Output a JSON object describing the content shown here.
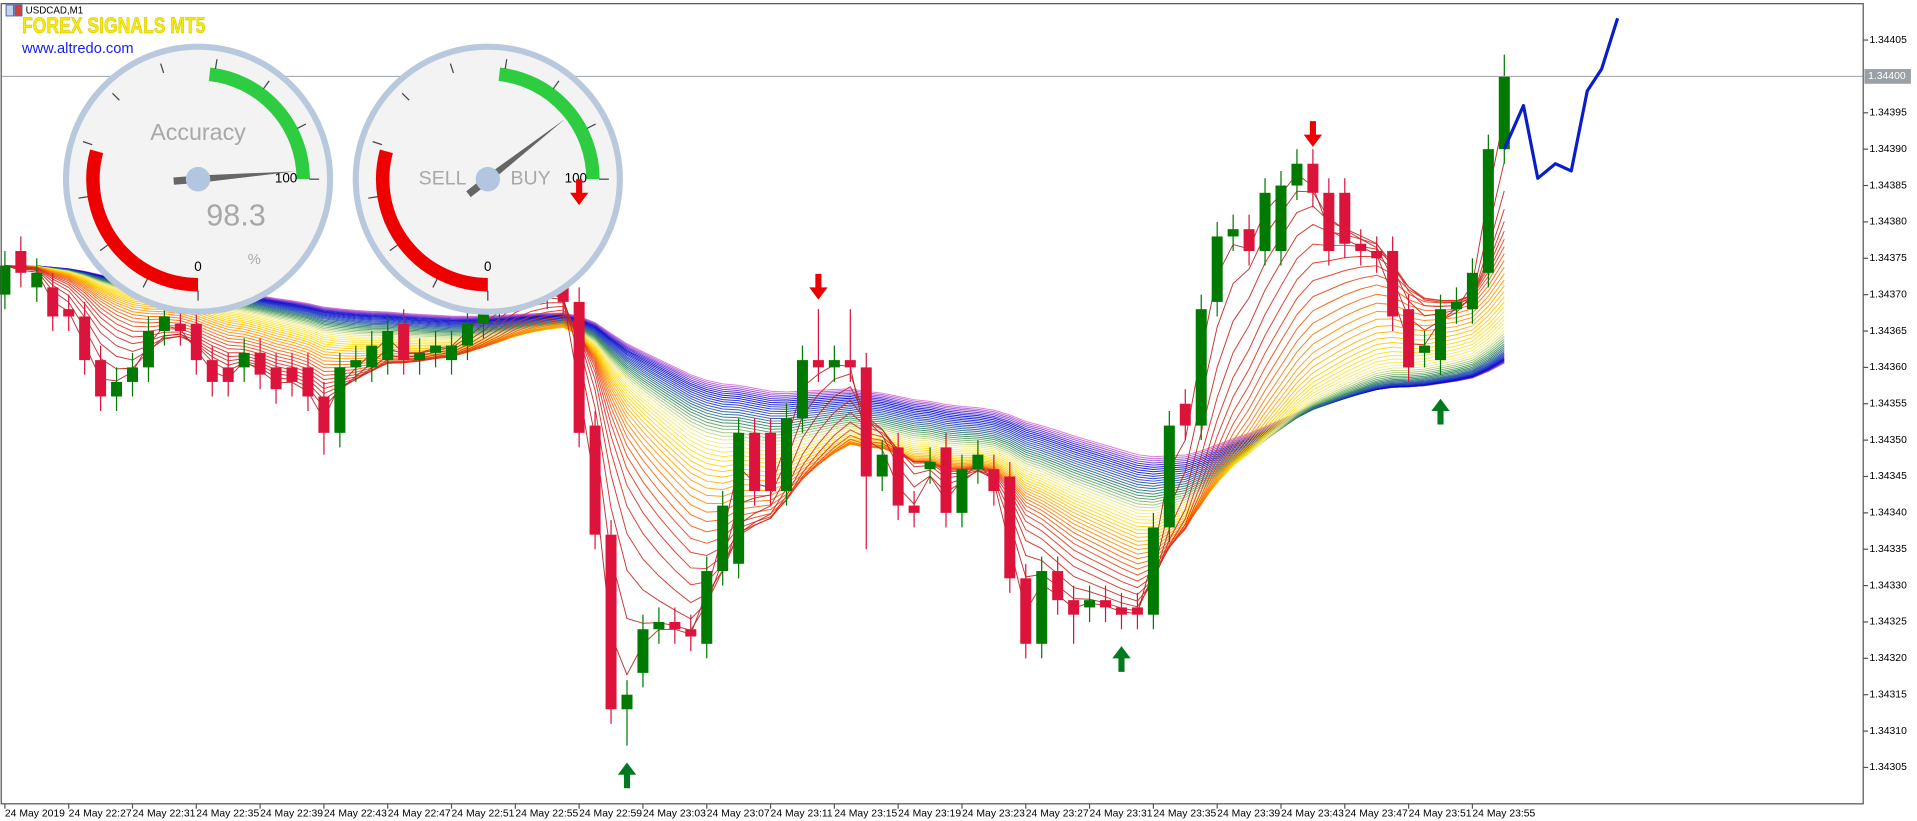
{
  "header": {
    "symbol": "USDCAD,M1",
    "brand": "FOREX SIGNALS MT5",
    "url": "www.altredo.com"
  },
  "chart_data": {
    "type": "candlestick",
    "xlim": [
      -0.23,
      116.5
    ],
    "ylim": [
      1.343,
      1.3441
    ],
    "xticks": [
      {
        "value": 0,
        "label": "24 May 2019"
      },
      {
        "value": 4,
        "label": "24 May 22:27"
      },
      {
        "value": 8,
        "label": "24 May 22:31"
      },
      {
        "value": 12,
        "label": "24 May 22:35"
      },
      {
        "value": 16,
        "label": "24 May 22:39"
      },
      {
        "value": 20,
        "label": "24 May 22:43"
      },
      {
        "value": 24,
        "label": "24 May 22:47"
      },
      {
        "value": 28,
        "label": "24 May 22:51"
      },
      {
        "value": 32,
        "label": "24 May 22:55"
      },
      {
        "value": 36,
        "label": "24 May 22:59"
      },
      {
        "value": 40,
        "label": "24 May 23:03"
      },
      {
        "value": 44,
        "label": "24 May 23:07"
      },
      {
        "value": 48,
        "label": "24 May 23:11"
      },
      {
        "value": 52,
        "label": "24 May 23:15"
      },
      {
        "value": 56,
        "label": "24 May 23:19"
      },
      {
        "value": 60,
        "label": "24 May 23:23"
      },
      {
        "value": 64,
        "label": "24 May 23:27"
      },
      {
        "value": 68,
        "label": "24 May 23:31"
      },
      {
        "value": 72,
        "label": "24 May 23:35"
      },
      {
        "value": 76,
        "label": "24 May 23:39"
      },
      {
        "value": 80,
        "label": "24 May 23:43"
      },
      {
        "value": 84,
        "label": "24 May 23:47"
      },
      {
        "value": 88,
        "label": "24 May 23:51"
      },
      {
        "value": 92,
        "label": "24 May 23:55"
      }
    ],
    "yticks": [
      1.34305,
      {
        "value": 1.3431,
        "label": "1.34310"
      },
      1.34315,
      {
        "value": 1.3432,
        "label": "1.34320"
      },
      1.34325,
      {
        "value": 1.3433,
        "label": "1.34330"
      },
      1.34335,
      {
        "value": 1.3434,
        "label": "1.34340"
      },
      1.34345,
      {
        "value": 1.3435,
        "label": "1.34350"
      },
      1.34355,
      {
        "value": 1.3436,
        "label": "1.34360"
      },
      1.34365,
      {
        "value": 1.3437,
        "label": "1.34370"
      },
      1.34375,
      {
        "value": 1.3438,
        "label": "1.34380"
      },
      1.34385,
      {
        "value": 1.3439,
        "label": "1.34390"
      },
      1.34395,
      1.34405
    ],
    "current_price": {
      "value": 1.344,
      "label": "1.34400"
    },
    "up_color": "#007a00",
    "down_color": "#dc143c",
    "open": [
      1.3437,
      1.34376,
      1.34371,
      1.34371,
      1.34368,
      1.34367,
      1.34361,
      1.34356,
      1.34358,
      1.3436,
      1.34365,
      1.34366,
      1.34366,
      1.34361,
      1.3436,
      1.3436,
      1.34362,
      1.3436,
      1.3436,
      1.3436,
      1.34356,
      1.34351,
      1.3436,
      1.3436,
      1.34361,
      1.34366,
      1.34361,
      1.34362,
      1.34361,
      1.34363,
      1.34366,
      1.34368,
      1.3437,
      1.34372,
      1.34371,
      1.34371,
      1.34369,
      1.34352,
      1.34337,
      1.34313,
      1.34318,
      1.34324,
      1.34325,
      1.34324,
      1.34322,
      1.34332,
      1.34333,
      1.34351,
      1.34351,
      1.34343,
      1.34353,
      1.34361,
      1.3436,
      1.34361,
      1.3436,
      1.34345,
      1.34349,
      1.34341,
      1.34346,
      1.34349,
      1.3434,
      1.34346,
      1.34346,
      1.34345,
      1.34331,
      1.34322,
      1.34332,
      1.34328,
      1.34327,
      1.34328,
      1.34327,
      1.34327,
      1.34326,
      1.34338,
      1.34355,
      1.34352,
      1.34369,
      1.34378,
      1.34379,
      1.34376,
      1.34376,
      1.34385,
      1.34388,
      1.34384,
      1.34384,
      1.34377,
      1.34376,
      1.34376,
      1.34368,
      1.34362,
      1.34361,
      1.34368,
      1.34368,
      1.34373,
      1.3439
    ],
    "high": [
      1.34376,
      1.34378,
      1.34375,
      1.34373,
      1.3437,
      1.34369,
      1.34363,
      1.3436,
      1.34362,
      1.34367,
      1.34369,
      1.34368,
      1.34368,
      1.34363,
      1.34362,
      1.34364,
      1.34364,
      1.34362,
      1.34362,
      1.34362,
      1.34358,
      1.34362,
      1.34363,
      1.34365,
      1.34367,
      1.34368,
      1.34364,
      1.34365,
      1.34365,
      1.34368,
      1.3437,
      1.34372,
      1.34374,
      1.34374,
      1.34373,
      1.34373,
      1.34371,
      1.34354,
      1.34339,
      1.34317,
      1.34326,
      1.34327,
      1.34327,
      1.34326,
      1.34334,
      1.34343,
      1.34353,
      1.34353,
      1.34353,
      1.34355,
      1.34363,
      1.34368,
      1.34363,
      1.34368,
      1.34362,
      1.3435,
      1.34351,
      1.34343,
      1.34349,
      1.34351,
      1.34348,
      1.3435,
      1.34348,
      1.34347,
      1.34333,
      1.34334,
      1.34334,
      1.3433,
      1.3433,
      1.3433,
      1.34329,
      1.34329,
      1.3434,
      1.34354,
      1.34357,
      1.3437,
      1.3438,
      1.34381,
      1.34381,
      1.34386,
      1.34387,
      1.3439,
      1.3439,
      1.34386,
      1.34386,
      1.34379,
      1.34378,
      1.34378,
      1.3437,
      1.34365,
      1.3437,
      1.34371,
      1.34375,
      1.34392,
      1.34403
    ],
    "low": [
      1.34368,
      1.34371,
      1.34369,
      1.34365,
      1.34365,
      1.34359,
      1.34354,
      1.34354,
      1.34356,
      1.34358,
      1.34363,
      1.34363,
      1.34359,
      1.34356,
      1.34356,
      1.34358,
      1.34357,
      1.34355,
      1.34356,
      1.34354,
      1.34348,
      1.34349,
      1.34358,
      1.34358,
      1.34359,
      1.34359,
      1.34359,
      1.3436,
      1.34359,
      1.34361,
      1.34364,
      1.34366,
      1.34368,
      1.34369,
      1.34368,
      1.34367,
      1.34349,
      1.34335,
      1.34311,
      1.34308,
      1.34316,
      1.34322,
      1.34322,
      1.34321,
      1.3432,
      1.3433,
      1.34331,
      1.34341,
      1.34341,
      1.34341,
      1.34351,
      1.34358,
      1.34358,
      1.34358,
      1.34335,
      1.34343,
      1.34339,
      1.34338,
      1.34344,
      1.34338,
      1.34338,
      1.34344,
      1.34341,
      1.34329,
      1.3432,
      1.3432,
      1.34326,
      1.34322,
      1.34325,
      1.34325,
      1.34324,
      1.34324,
      1.34324,
      1.34336,
      1.3435,
      1.3435,
      1.34367,
      1.34376,
      1.34374,
      1.34374,
      1.34374,
      1.34383,
      1.34382,
      1.34374,
      1.34375,
      1.34374,
      1.34373,
      1.34365,
      1.34358,
      1.3436,
      1.34359,
      1.34366,
      1.34366,
      1.34371,
      1.34388
    ],
    "close": [
      1.34374,
      1.34373,
      1.34373,
      1.34367,
      1.34367,
      1.34361,
      1.34356,
      1.34358,
      1.3436,
      1.34365,
      1.34367,
      1.34365,
      1.34361,
      1.34358,
      1.34358,
      1.34362,
      1.34359,
      1.34357,
      1.34358,
      1.34356,
      1.34351,
      1.3436,
      1.34361,
      1.34363,
      1.34365,
      1.34361,
      1.34362,
      1.34363,
      1.34363,
      1.34366,
      1.34368,
      1.3437,
      1.34372,
      1.34371,
      1.3437,
      1.34369,
      1.34351,
      1.34337,
      1.34313,
      1.34315,
      1.34324,
      1.34325,
      1.34324,
      1.34323,
      1.34332,
      1.34341,
      1.34351,
      1.34343,
      1.34343,
      1.34353,
      1.34361,
      1.3436,
      1.34361,
      1.3436,
      1.34345,
      1.34348,
      1.34341,
      1.3434,
      1.34347,
      1.3434,
      1.34346,
      1.34348,
      1.34343,
      1.34331,
      1.34322,
      1.34332,
      1.34328,
      1.34326,
      1.34328,
      1.34327,
      1.34326,
      1.34326,
      1.34338,
      1.34352,
      1.34352,
      1.34368,
      1.34378,
      1.34379,
      1.34376,
      1.34384,
      1.34385,
      1.34388,
      1.34384,
      1.34376,
      1.34377,
      1.34376,
      1.34375,
      1.34367,
      1.3436,
      1.34363,
      1.34368,
      1.34369,
      1.34373,
      1.3439,
      1.344
    ],
    "ribbon_colors": [
      "#b22222",
      "#e03020",
      "#ff8c00",
      "#ffd700",
      "#f5f08c",
      "#2e8b57",
      "#1e3fbf",
      "#0000cd",
      "#da70d6"
    ],
    "forecast": {
      "color": "#0a1ec8",
      "x": [
        94,
        95.2,
        96.1,
        97.2,
        98.2,
        99.2,
        100.1,
        101.1
      ],
      "values": [
        1.3439,
        1.34396,
        1.34386,
        1.34388,
        1.34387,
        1.34398,
        1.34401,
        1.34408
      ]
    },
    "signal_up_color": "#007a1e",
    "signal_down_color": "#ee0000",
    "signals": [
      {
        "index": 36,
        "direction": "down",
        "price": 1.34384
      },
      {
        "index": 39,
        "direction": "up",
        "price": 1.34304
      },
      {
        "index": 51,
        "direction": "down",
        "price": 1.34371
      },
      {
        "index": 70,
        "direction": "up",
        "price": 1.3432
      },
      {
        "index": 82,
        "direction": "down",
        "price": 1.34392
      },
      {
        "index": 90,
        "direction": "up",
        "price": 1.34354
      }
    ]
  },
  "gauges": [
    {
      "title": "Accuracy",
      "value": 98.3,
      "unit": "%",
      "min": 0,
      "max": 100,
      "zones": [
        {
          "from": 0,
          "to": 39,
          "color": "#ee0000"
        },
        {
          "from": 69,
          "to": 100,
          "color": "#2ecc40"
        }
      ]
    },
    {
      "left_label": "SELL",
      "right_label": "BUY",
      "value": 86,
      "min": 0,
      "max": 100,
      "zones": [
        {
          "from": 0,
          "to": 39,
          "color": "#ee0000"
        },
        {
          "from": 69,
          "to": 100,
          "color": "#2ecc40"
        }
      ]
    }
  ]
}
